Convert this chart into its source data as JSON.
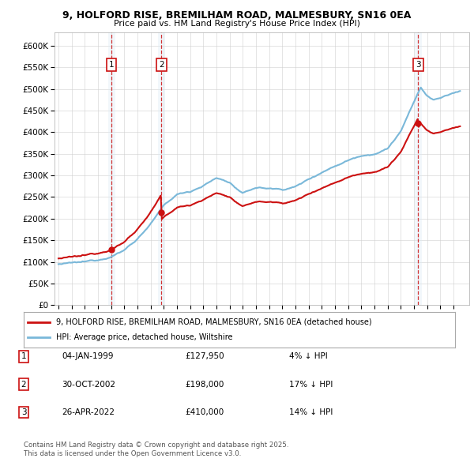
{
  "title1": "9, HOLFORD RISE, BREMILHAM ROAD, MALMESBURY, SN16 0EA",
  "title2": "Price paid vs. HM Land Registry's House Price Index (HPI)",
  "ylim": [
    0,
    630000
  ],
  "yticks": [
    0,
    50000,
    100000,
    150000,
    200000,
    250000,
    300000,
    350000,
    400000,
    450000,
    500000,
    550000,
    600000
  ],
  "ytick_labels": [
    "£0",
    "£50K",
    "£100K",
    "£150K",
    "£200K",
    "£250K",
    "£300K",
    "£350K",
    "£400K",
    "£450K",
    "£500K",
    "£550K",
    "£600K"
  ],
  "hpi_color": "#7ab8d9",
  "price_color": "#cc1111",
  "transaction_color": "#cc1111",
  "vline_color": "#cc1111",
  "shade_color": "#daeaf5",
  "transactions": [
    {
      "label": "1",
      "date_num": 1999.03,
      "price": 127950,
      "date_str": "04-JAN-1999",
      "pct": "4%",
      "dir": "↓"
    },
    {
      "label": "2",
      "date_num": 2002.83,
      "price": 198000,
      "date_str": "30-OCT-2002",
      "pct": "17%",
      "dir": "↓"
    },
    {
      "label": "3",
      "date_num": 2022.32,
      "price": 410000,
      "date_str": "26-APR-2022",
      "pct": "14%",
      "dir": "↓"
    }
  ],
  "legend_line1": "9, HOLFORD RISE, BREMILHAM ROAD, MALMESBURY, SN16 0EA (detached house)",
  "legend_line2": "HPI: Average price, detached house, Wiltshire",
  "footer1": "Contains HM Land Registry data © Crown copyright and database right 2025.",
  "footer2": "This data is licensed under the Open Government Licence v3.0.",
  "background_color": "#ffffff"
}
